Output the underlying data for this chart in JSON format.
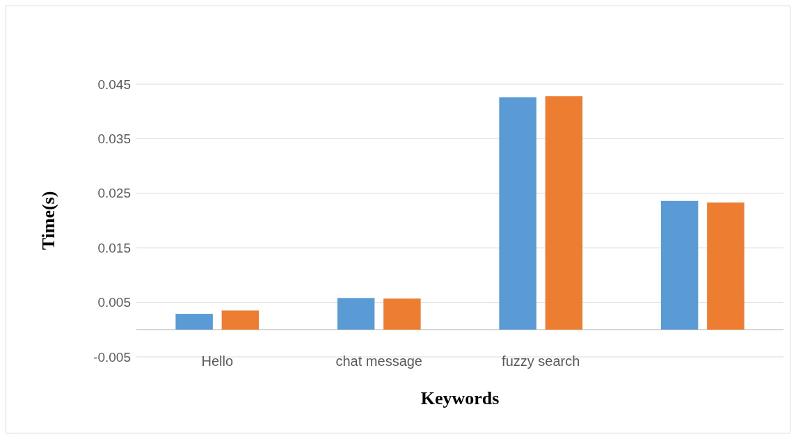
{
  "chart_data": {
    "type": "bar",
    "xlabel": "Keywords",
    "ylabel": "Time(s)",
    "categories": [
      "Hello",
      "chat message",
      "fuzzy search",
      null
    ],
    "series": [
      {
        "color": "#5b9bd5",
        "values": [
          0.0029,
          0.0058,
          0.0426,
          0.0236
        ]
      },
      {
        "color": "#ed7d31",
        "values": [
          0.0035,
          0.0057,
          0.0428,
          0.0233
        ]
      }
    ],
    "ylim": [
      -0.005,
      0.045
    ],
    "yticks": [
      -0.005,
      0.005,
      0.015,
      0.025,
      0.035,
      0.045
    ],
    "grid": "y"
  }
}
